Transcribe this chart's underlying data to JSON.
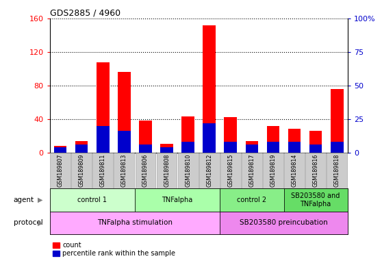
{
  "title": "GDS2885 / 4960",
  "samples": [
    "GSM189807",
    "GSM189809",
    "GSM189811",
    "GSM189813",
    "GSM189806",
    "GSM189808",
    "GSM189810",
    "GSM189812",
    "GSM189815",
    "GSM189817",
    "GSM189819",
    "GSM189814",
    "GSM189816",
    "GSM189818"
  ],
  "count_values": [
    8,
    14,
    108,
    96,
    38,
    10,
    43,
    152,
    42,
    14,
    32,
    28,
    26,
    76
  ],
  "percentile_values": [
    4,
    6,
    20,
    16,
    6,
    4,
    8,
    22,
    8,
    6,
    8,
    8,
    6,
    8
  ],
  "ylim_left": [
    0,
    160
  ],
  "ylim_right": [
    0,
    100
  ],
  "yticks_left": [
    0,
    40,
    80,
    120,
    160
  ],
  "yticks_right": [
    0,
    25,
    50,
    75,
    100
  ],
  "ytick_labels_right": [
    "0",
    "25",
    "50",
    "75",
    "100%"
  ],
  "bar_color_count": "#ff0000",
  "bar_color_pct": "#0000cc",
  "bar_width": 0.6,
  "agent_groups": [
    {
      "label": "control 1",
      "start": 0,
      "end": 3,
      "color": "#ccffcc"
    },
    {
      "label": "TNFalpha",
      "start": 4,
      "end": 7,
      "color": "#aaffaa"
    },
    {
      "label": "control 2",
      "start": 8,
      "end": 10,
      "color": "#88ee88"
    },
    {
      "label": "SB203580 and\nTNFalpha",
      "start": 11,
      "end": 13,
      "color": "#66dd66"
    }
  ],
  "protocol_groups": [
    {
      "label": "TNFalpha stimulation",
      "start": 0,
      "end": 7,
      "color": "#ffaaff"
    },
    {
      "label": "SB203580 preincubation",
      "start": 8,
      "end": 13,
      "color": "#ee88ee"
    }
  ],
  "legend_count_label": "count",
  "legend_pct_label": "percentile rank within the sample",
  "agent_label": "agent",
  "protocol_label": "protocol",
  "tick_bg_color": "#cccccc"
}
